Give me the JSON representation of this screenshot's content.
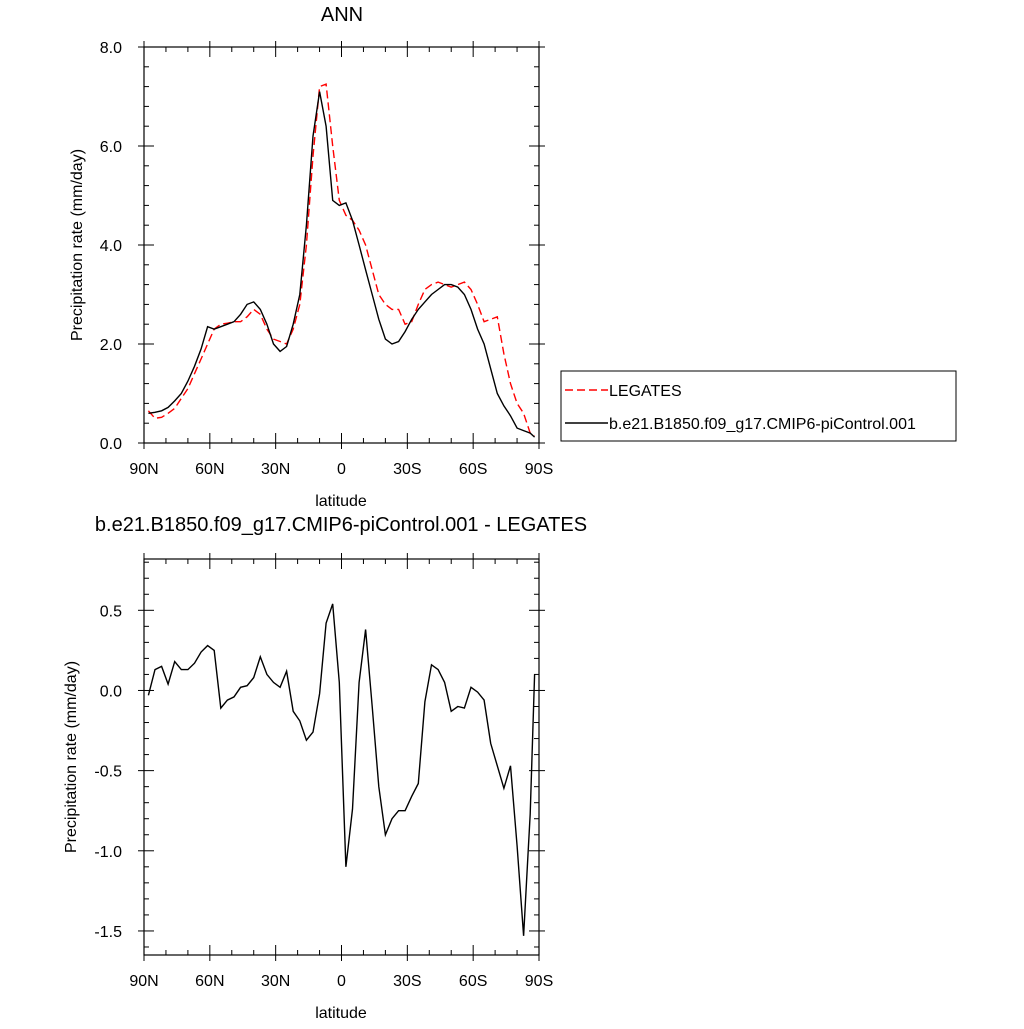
{
  "chart_data": [
    {
      "type": "line",
      "title": "ANN",
      "xlabel": "latitude",
      "ylabel": "Precipitation rate (mm/day)",
      "xlim": [
        90,
        -90
      ],
      "ylim": [
        0,
        8
      ],
      "x_ticks": [
        90,
        60,
        30,
        0,
        -30,
        -60,
        -90
      ],
      "x_tick_labels": [
        "90N",
        "60N",
        "30N",
        "0",
        "30S",
        "60S",
        "90S"
      ],
      "y_ticks": [
        0,
        2,
        4,
        6,
        8
      ],
      "y_tick_labels": [
        "0.0",
        "2.0",
        "4.0",
        "6.0",
        "8.0"
      ],
      "grid": false,
      "legend_position": "right",
      "series": [
        {
          "name": "LEGATES",
          "color": "#ff0000",
          "dash": "dashed",
          "x": [
            88,
            85,
            82,
            79,
            76,
            73,
            70,
            67,
            64,
            61,
            58,
            55,
            52,
            49,
            46,
            43,
            40,
            37,
            34,
            31,
            28,
            25,
            22,
            19,
            16,
            13,
            10,
            7,
            4,
            1,
            -2,
            -5,
            -8,
            -11,
            -14,
            -17,
            -20,
            -23,
            -26,
            -29,
            -32,
            -35,
            -38,
            -41,
            -44,
            -47,
            -50,
            -53,
            -56,
            -59,
            -62,
            -65,
            -68,
            -71,
            -74,
            -77,
            -80,
            -83,
            -86,
            -88
          ],
          "y": [
            0.65,
            0.5,
            0.52,
            0.6,
            0.7,
            0.9,
            1.1,
            1.4,
            1.7,
            2.0,
            2.3,
            2.4,
            2.42,
            2.45,
            2.45,
            2.55,
            2.7,
            2.6,
            2.3,
            2.1,
            2.05,
            2.0,
            2.3,
            2.8,
            4.0,
            5.8,
            7.2,
            7.25,
            6.0,
            4.9,
            4.6,
            4.5,
            4.3,
            4.0,
            3.5,
            3.0,
            2.8,
            2.7,
            2.7,
            2.4,
            2.45,
            2.8,
            3.1,
            3.2,
            3.25,
            3.2,
            3.15,
            3.2,
            3.25,
            3.1,
            2.8,
            2.45,
            2.5,
            2.55,
            1.8,
            1.2,
            0.8,
            0.6,
            0.2,
            0.15
          ]
        },
        {
          "name": "b.e21.B1850.f09_g17.CMIP6-piControl.001",
          "color": "#000000",
          "dash": "solid",
          "x": [
            88,
            85,
            82,
            79,
            76,
            73,
            70,
            67,
            64,
            61,
            58,
            55,
            52,
            49,
            46,
            43,
            40,
            37,
            34,
            31,
            28,
            25,
            22,
            19,
            16,
            13,
            10,
            7,
            4,
            1,
            -2,
            -5,
            -8,
            -11,
            -14,
            -17,
            -20,
            -23,
            -26,
            -29,
            -32,
            -35,
            -38,
            -41,
            -44,
            -47,
            -50,
            -53,
            -56,
            -59,
            -62,
            -65,
            -68,
            -71,
            -74,
            -77,
            -80,
            -83,
            -86,
            -88
          ],
          "y": [
            0.6,
            0.62,
            0.65,
            0.72,
            0.85,
            1.0,
            1.25,
            1.55,
            1.9,
            2.35,
            2.3,
            2.35,
            2.4,
            2.45,
            2.6,
            2.8,
            2.85,
            2.7,
            2.4,
            2.0,
            1.85,
            1.95,
            2.4,
            3.0,
            4.4,
            6.2,
            7.1,
            6.4,
            4.9,
            4.8,
            4.85,
            4.5,
            4.0,
            3.5,
            3.0,
            2.5,
            2.1,
            2.0,
            2.05,
            2.25,
            2.5,
            2.7,
            2.85,
            3.0,
            3.1,
            3.2,
            3.2,
            3.15,
            3.0,
            2.7,
            2.3,
            2.0,
            1.5,
            1.0,
            0.75,
            0.55,
            0.3,
            0.25,
            0.2,
            0.12
          ]
        }
      ]
    },
    {
      "type": "line",
      "title": "b.e21.B1850.f09_g17.CMIP6-piControl.001 - LEGATES",
      "xlabel": "latitude",
      "ylabel": "Precipitation rate (mm/day)",
      "xlim": [
        90,
        -90
      ],
      "ylim": [
        -1.65,
        0.82
      ],
      "x_ticks": [
        90,
        60,
        30,
        0,
        -30,
        -60,
        -90
      ],
      "x_tick_labels": [
        "90N",
        "60N",
        "30N",
        "0",
        "30S",
        "60S",
        "90S"
      ],
      "y_ticks": [
        -1.5,
        -1.0,
        -0.5,
        0.0,
        0.5
      ],
      "y_tick_labels": [
        "-1.5",
        "-1.0",
        "-0.5",
        "0.0",
        "0.5"
      ],
      "grid": false,
      "series": [
        {
          "color": "#000000",
          "dash": "solid",
          "x": [
            88,
            85,
            82,
            79,
            76,
            73,
            70,
            67,
            64,
            61,
            58,
            55,
            52,
            49,
            46,
            43,
            40,
            37,
            34,
            31,
            28,
            25,
            22,
            19,
            16,
            13,
            10,
            7,
            4,
            1,
            -2,
            -5,
            -8,
            -11,
            -14,
            -17,
            -20,
            -23,
            -26,
            -29,
            -32,
            -35,
            -38,
            -41,
            -44,
            -47,
            -50,
            -53,
            -56,
            -59,
            -62,
            -65,
            -68,
            -71,
            -74,
            -77,
            -80,
            -83,
            -86,
            -88
          ],
          "y": [
            -0.03,
            0.13,
            0.15,
            0.04,
            0.18,
            0.13,
            0.13,
            0.17,
            0.24,
            0.28,
            0.25,
            -0.11,
            -0.06,
            -0.04,
            0.02,
            0.03,
            0.08,
            0.21,
            0.1,
            0.05,
            0.02,
            0.12,
            -0.13,
            -0.19,
            -0.31,
            -0.26,
            -0.02,
            0.42,
            0.54,
            0.05,
            -1.1,
            -0.74,
            0.05,
            0.38,
            -0.1,
            -0.6,
            -0.9,
            -0.8,
            -0.75,
            -0.75,
            -0.66,
            -0.58,
            -0.07,
            0.16,
            0.13,
            0.05,
            -0.13,
            -0.1,
            -0.11,
            0.02,
            -0.01,
            -0.06,
            -0.33,
            -0.47,
            -0.61,
            -0.47,
            -0.97,
            -1.53,
            -0.77,
            0.1
          ]
        }
      ]
    }
  ]
}
